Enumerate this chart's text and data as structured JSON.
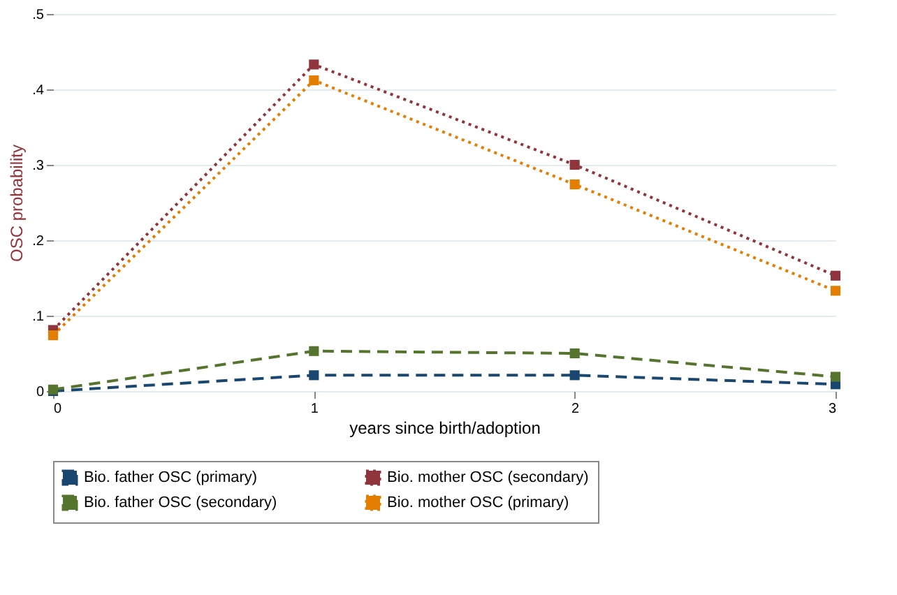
{
  "chart_data": {
    "type": "line",
    "xlabel": "years since birth/adoption",
    "ylabel": "OSC probability",
    "x": [
      0,
      1,
      2,
      3
    ],
    "xlim": [
      0,
      3
    ],
    "xticks": [
      0,
      1,
      2,
      3
    ],
    "ylim": [
      0,
      0.5
    ],
    "yticks": [
      {
        "value": 0,
        "label": "0"
      },
      {
        "value": 0.1,
        "label": ".1"
      },
      {
        "value": 0.2,
        "label": ".2"
      },
      {
        "value": 0.3,
        "label": ".3"
      },
      {
        "value": 0.4,
        "label": ".4"
      },
      {
        "value": 0.5,
        "label": ".5"
      }
    ],
    "grid": "y",
    "legend": "bottom",
    "marker": "square",
    "series": [
      {
        "name": "Bio. father OSC (primary)",
        "color": "#1a476f",
        "line_style": "dashed",
        "values": [
          0.0,
          0.021,
          0.021,
          0.009
        ]
      },
      {
        "name": "Bio. mother OSC (secondary)",
        "color": "#90353b",
        "line_style": "dotted",
        "values": [
          0.081,
          0.433,
          0.3,
          0.153
        ]
      },
      {
        "name": "Bio. father OSC (secondary)",
        "color": "#55752f",
        "line_style": "dashed",
        "values": [
          0.002,
          0.053,
          0.05,
          0.019
        ]
      },
      {
        "name": "Bio. mother OSC (primary)",
        "color": "#e37e00",
        "line_style": "dotted",
        "values": [
          0.074,
          0.412,
          0.274,
          0.133
        ]
      }
    ]
  }
}
